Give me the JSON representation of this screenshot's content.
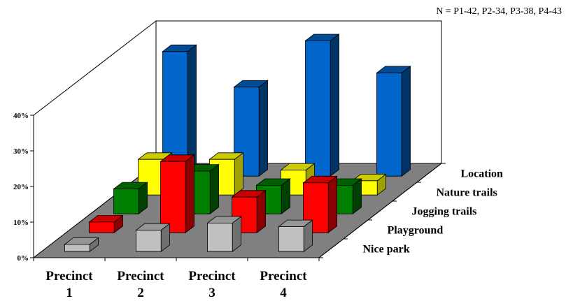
{
  "chart_data": {
    "type": "bar",
    "subtype": "3d-column",
    "note": "N = P1-42, P2-34, P3-38, P4-43",
    "categories": [
      {
        "line1": "Precinct",
        "line2": "1"
      },
      {
        "line1": "Precinct",
        "line2": "2"
      },
      {
        "line1": "Precinct",
        "line2": "3"
      },
      {
        "line1": "Precinct",
        "line2": "4"
      }
    ],
    "series": [
      {
        "name": "Nice park",
        "values": [
          2,
          6,
          8,
          7
        ],
        "color": "#c0c0c0",
        "color_side": "#707070",
        "color_top": "#969696"
      },
      {
        "name": "Playground",
        "values": [
          3,
          20,
          10,
          14
        ],
        "color": "#ff0000",
        "color_side": "#8b0000",
        "color_top": "#cc0000"
      },
      {
        "name": "Jogging trails",
        "values": [
          7,
          12,
          8,
          8
        ],
        "color": "#008000",
        "color_side": "#004000",
        "color_top": "#006000"
      },
      {
        "name": "Nature trails",
        "values": [
          10,
          10,
          7,
          4
        ],
        "color": "#ffff00",
        "color_side": "#a0a000",
        "color_top": "#cccc00"
      },
      {
        "name": "Location",
        "values": [
          35,
          25,
          38,
          29
        ],
        "color": "#0066cc",
        "color_side": "#003366",
        "color_top": "#004c99"
      }
    ],
    "yaxis": {
      "ticks": [
        "0%",
        "10%",
        "20%",
        "30%",
        "40%"
      ],
      "min": 0,
      "max": 40
    },
    "grid": false
  }
}
